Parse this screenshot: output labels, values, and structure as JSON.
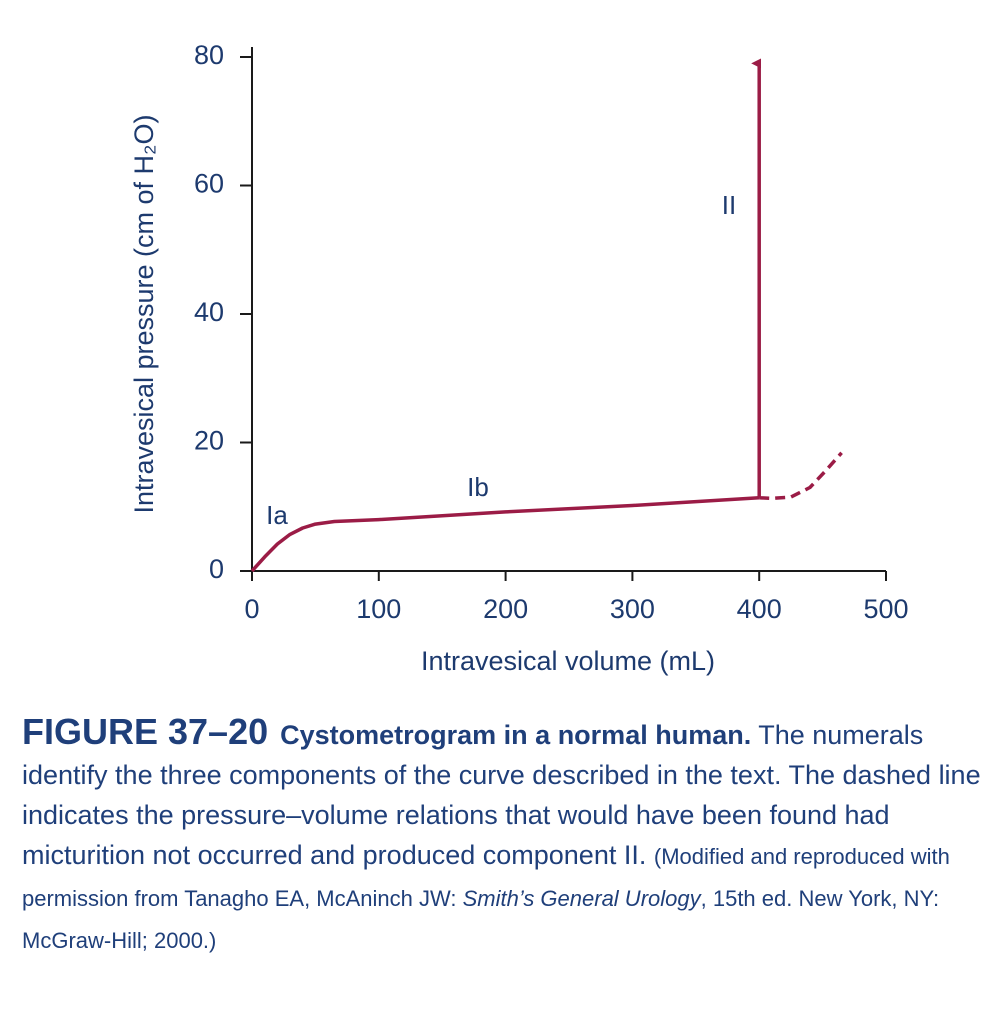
{
  "chart_data": {
    "type": "line",
    "x_label": "Intravesical volume (mL)",
    "y_label": "Intravesical pressure (cm of H₂O)",
    "xlim": [
      0,
      500
    ],
    "xticks": [
      0,
      100,
      200,
      300,
      400,
      500
    ],
    "ylim": [
      0,
      80
    ],
    "yticks": [
      0,
      20,
      40,
      60,
      80
    ],
    "series": [
      {
        "color": "#9b1c46",
        "style": "solid",
        "x": [
          0,
          10,
          20,
          30,
          40,
          50,
          65,
          100,
          200,
          300,
          400
        ],
        "values": [
          0,
          2.2,
          4.2,
          5.7,
          6.7,
          7.3,
          7.7,
          8.0,
          9.2,
          10.2,
          11.4
        ]
      },
      {
        "color": "#9b1c46",
        "style": "dashed",
        "x": [
          400,
          410,
          425,
          440,
          452,
          465
        ],
        "values": [
          11.4,
          11.3,
          11.5,
          13,
          15.5,
          18.4
        ]
      },
      {
        "color": "#9b1c46",
        "style": "arrow",
        "x": [
          400,
          400
        ],
        "values": [
          11.4,
          79
        ]
      }
    ],
    "annotations": [
      "Ia",
      "Ib",
      "II"
    ]
  },
  "caption": {
    "label": "FIGURE 37–20",
    "title": "Cystometrogram in a normal human.",
    "text": "The numerals identify the three components of the curve described in the text. The dashed line indicates the pressure–volume relations that would have been found had micturition not occurred and produced component II.",
    "source_before": "(Modified and reproduced with permission from Tanagho EA, McAninch JW: ",
    "source_italic": "Smith’s General Urology",
    "source_after": ", 15th ed. New York, NY: McGraw-Hill; 2000.)"
  }
}
